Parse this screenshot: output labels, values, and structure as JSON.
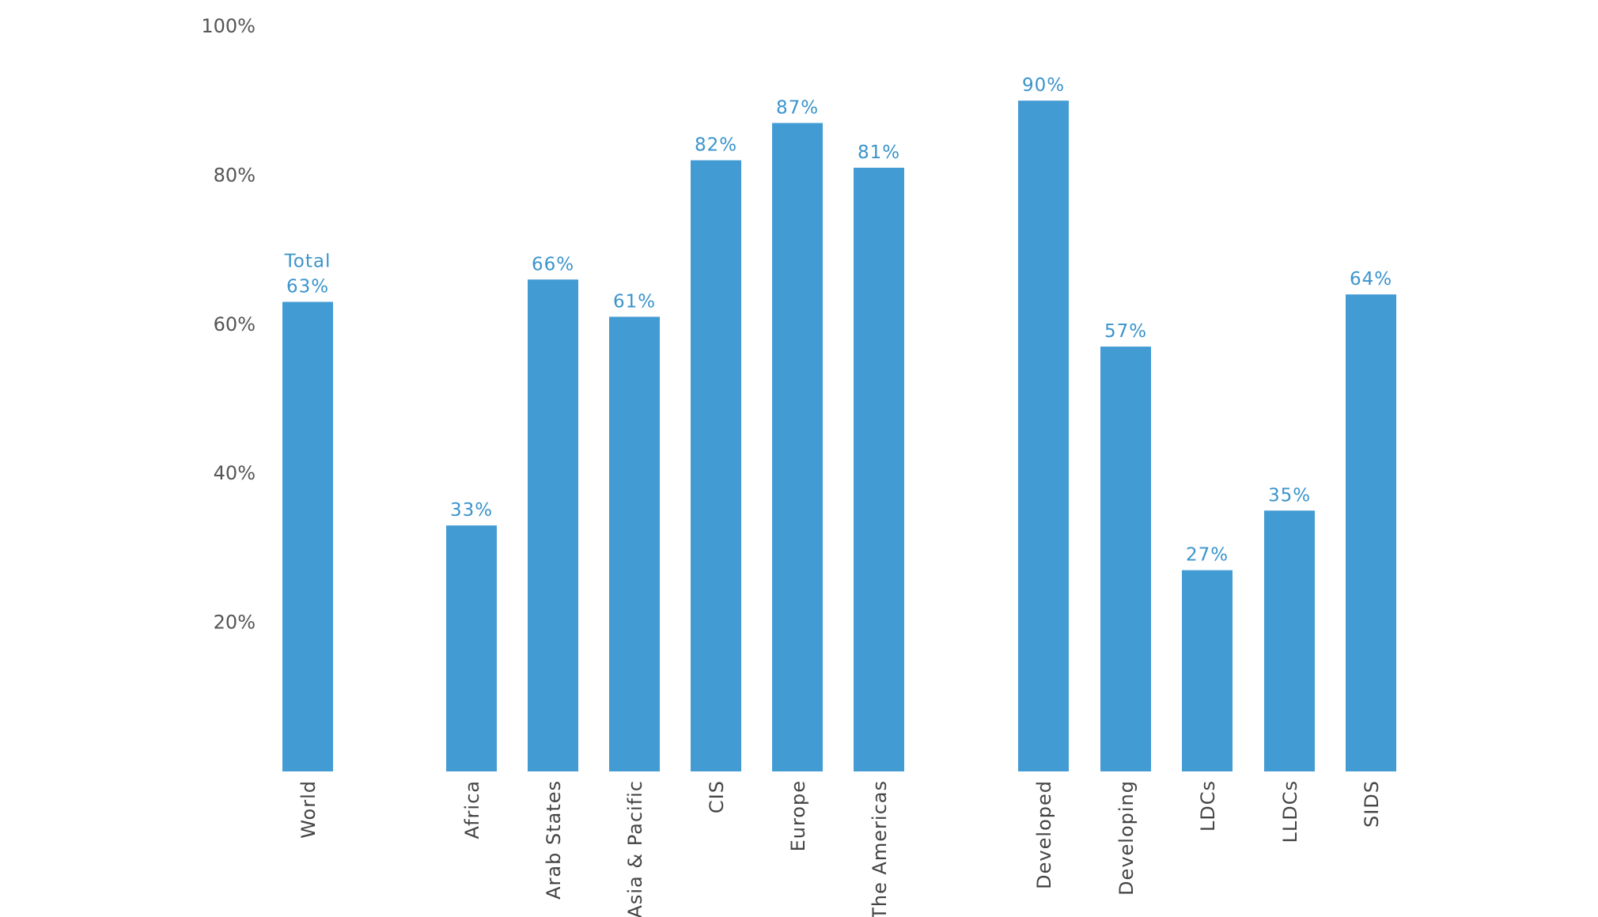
{
  "chart_data": {
    "type": "bar",
    "bar_color": "#439BD4",
    "value_label_color": "#3B94CC",
    "ylim": [
      0,
      100
    ],
    "y_ticks": [
      {
        "value": 20,
        "label": "20%"
      },
      {
        "value": 40,
        "label": "40%"
      },
      {
        "value": 60,
        "label": "60%"
      },
      {
        "value": 80,
        "label": "80%"
      },
      {
        "value": 100,
        "label": "100%"
      }
    ],
    "categories": [
      "World",
      "Africa",
      "Arab States",
      "Asia & Pacific",
      "CIS",
      "Europe",
      "The Americas",
      "Developed",
      "Developing",
      "LDCs",
      "LLDCs",
      "SIDS"
    ],
    "values": [
      63,
      33,
      66,
      61,
      82,
      87,
      81,
      90,
      57,
      27,
      35,
      64
    ],
    "value_labels": [
      "63%",
      "33%",
      "66%",
      "61%",
      "82%",
      "87%",
      "81%",
      "90%",
      "57%",
      "27%",
      "35%",
      "64%"
    ],
    "annotations": [
      {
        "category": "World",
        "text": "Total"
      }
    ]
  }
}
